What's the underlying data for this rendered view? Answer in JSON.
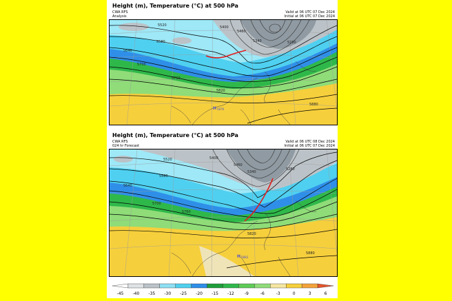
{
  "colors": {
    "background": "#ffff00",
    "cold_deep": "#7a8a94",
    "cold": "#a9b4bc",
    "cyan": "#4fd0f0",
    "cyan_light": "#9ee8f7",
    "blue": "#2f8fe8",
    "green": "#2fb84a",
    "green_light": "#8fdc78",
    "yellow": "#f6cf3c",
    "orange_light": "#f6e6a0",
    "tan": "#efe4b8",
    "trough": "#e21b1b"
  },
  "panels": [
    {
      "title": "Height (m), Temperature (°C) at 500 hPa",
      "model": "CWA RFS",
      "lead": "Analysis",
      "valid": "Valid at 06 UTC 07 Dec 2024",
      "initial": "Initial at 06 UTC 07 Dec 2024",
      "high_label": "H",
      "high_value": "5876",
      "contours": [
        "5520",
        "5580",
        "5640",
        "5700",
        "5760",
        "5820",
        "5880",
        "5400",
        "5460",
        "5340",
        "5280"
      ]
    },
    {
      "title": "Height (m), Temperature (°C) at 500 hPa",
      "model": "CWA RFS",
      "lead": "024 hr Forecast",
      "valid": "Valid at 06 UTC 08 Dec 2024",
      "initial": "Initial at 06 UTC 07 Dec 2024",
      "high_label": "H",
      "high_value": "5883",
      "contours": [
        "5520",
        "5580",
        "5640",
        "5700",
        "5760",
        "5820",
        "5880",
        "5400",
        "5460",
        "5340",
        "5280"
      ]
    }
  ],
  "colorbar": {
    "ticks": [
      "-45",
      "-40",
      "-35",
      "-30",
      "-25",
      "-20",
      "-15",
      "-12",
      "-9",
      "-6",
      "-3",
      "0",
      "3",
      "6"
    ],
    "colors": [
      "#ffffff",
      "#dfe3e6",
      "#bcc3c8",
      "#8fe0f4",
      "#4fd0f0",
      "#2f8fe8",
      "#1f9e3a",
      "#2fb84a",
      "#5fcc58",
      "#8fdc78",
      "#f6e6a0",
      "#f6cf3c",
      "#f3a33c",
      "#e8542a"
    ]
  }
}
